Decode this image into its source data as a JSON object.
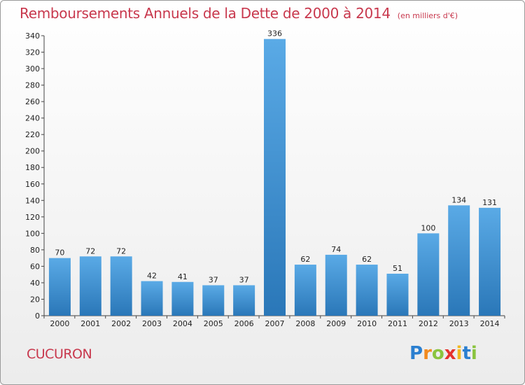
{
  "title": "Remboursements Annuels de la Dette de 2000 à 2014",
  "unit": "(en milliers d'€)",
  "commune": "CUCURON",
  "logo": {
    "letters": [
      "P",
      "r",
      "o",
      "x",
      "i",
      "t",
      "i"
    ],
    "colors": [
      "#2b7fd0",
      "#f28a1e",
      "#8ac43f",
      "#e5322d",
      "#f2b81e",
      "#2b7fd0",
      "#8ac43f"
    ]
  },
  "colors": {
    "bar_light": "#5aaae6",
    "bar_dark": "#2a77b8",
    "title": "#c8384d"
  },
  "chart_data": {
    "type": "bar",
    "categories": [
      "2000",
      "2001",
      "2002",
      "2003",
      "2004",
      "2005",
      "2006",
      "2007",
      "2008",
      "2009",
      "2010",
      "2011",
      "2012",
      "2013",
      "2014"
    ],
    "values": [
      70,
      72,
      72,
      42,
      41,
      37,
      37,
      336,
      62,
      74,
      62,
      51,
      100,
      134,
      131
    ],
    "ylim": [
      0,
      340
    ],
    "yticks": [
      0,
      20,
      40,
      60,
      80,
      100,
      120,
      140,
      160,
      180,
      200,
      220,
      240,
      260,
      280,
      300,
      320,
      340
    ],
    "grid": false,
    "data_labels": true
  }
}
